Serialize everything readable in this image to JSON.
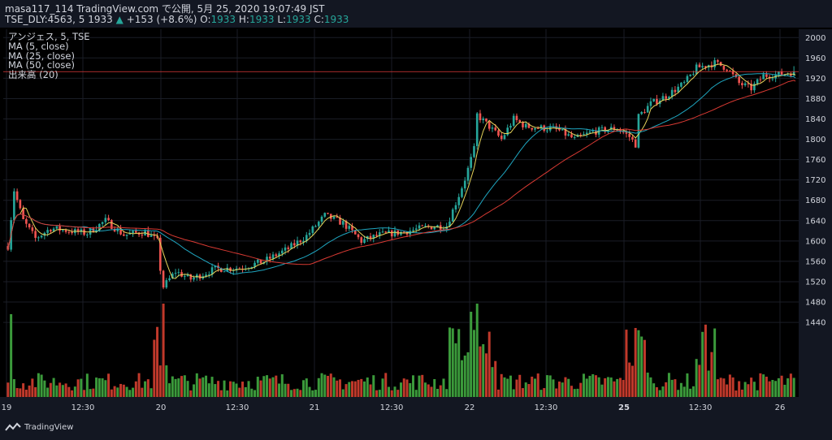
{
  "header": {
    "line1_publisher": "masa117_114 TradingView.com で公開, 5月 25, 2020 19:07:49 JST",
    "line2_symbol": "TSE_DLY:4563, 5",
    "line2_price": "1933",
    "line2_change": "+153 (+8.6%)",
    "line2_o_label": "O:",
    "line2_o": "1933",
    "line2_h_label": "H:",
    "line2_h": "1933",
    "line2_l_label": "L:",
    "line2_l": "1933",
    "line2_c_label": "C:",
    "line2_c": "1933"
  },
  "legend": {
    "title": "アンジェス, 5, TSE",
    "ma5": "MA (5, close)",
    "ma25": "MA (25, close)",
    "ma50": "MA (50, close)",
    "volume": "出来高 (20)"
  },
  "footer": {
    "brand": "TradingView"
  },
  "colors": {
    "up": "#26a69a",
    "down": "#ef5350",
    "ma5": "#e6d35a",
    "ma25": "#1fa6c0",
    "ma50": "#d93a33",
    "last_price_bg": "#e03a3a",
    "vol_up": "#3b9a3b",
    "vol_down": "#c0392b"
  },
  "chart_data": {
    "type": "candlestick",
    "title": "アンジェス, 5, TSE",
    "y_axis": {
      "ticks": [
        1440,
        1480,
        1520,
        1560,
        1600,
        1640,
        1680,
        1720,
        1760,
        1800,
        1840,
        1880,
        1920,
        1960,
        2000
      ],
      "range": [
        1410,
        2025
      ]
    },
    "x_axis": {
      "ticks": [
        {
          "label": "19",
          "bold": false
        },
        {
          "label": "12:30",
          "bold": false
        },
        {
          "label": "20",
          "bold": false
        },
        {
          "label": "12:30",
          "bold": false
        },
        {
          "label": "21",
          "bold": false
        },
        {
          "label": "12:30",
          "bold": false
        },
        {
          "label": "22",
          "bold": false
        },
        {
          "label": "12:30",
          "bold": false
        },
        {
          "label": "25",
          "bold": true
        },
        {
          "label": "12:30",
          "bold": false
        },
        {
          "label": "26",
          "bold": false
        }
      ]
    },
    "last_price": 1933,
    "anchors": [
      [
        0,
        1590
      ],
      [
        2,
        1700
      ],
      [
        5,
        1640
      ],
      [
        9,
        1605
      ],
      [
        14,
        1625
      ],
      [
        20,
        1620
      ],
      [
        26,
        1615
      ],
      [
        32,
        1640
      ],
      [
        38,
        1612
      ],
      [
        45,
        1618
      ],
      [
        49,
        1600
      ],
      [
        50,
        1545
      ],
      [
        51,
        1510
      ],
      [
        55,
        1540
      ],
      [
        60,
        1525
      ],
      [
        68,
        1545
      ],
      [
        76,
        1547
      ],
      [
        84,
        1560
      ],
      [
        92,
        1585
      ],
      [
        98,
        1610
      ],
      [
        104,
        1650
      ],
      [
        110,
        1635
      ],
      [
        116,
        1600
      ],
      [
        122,
        1612
      ],
      [
        130,
        1618
      ],
      [
        138,
        1628
      ],
      [
        144,
        1630
      ],
      [
        148,
        1690
      ],
      [
        150,
        1722
      ],
      [
        153,
        1780
      ],
      [
        154,
        1848
      ],
      [
        158,
        1825
      ],
      [
        162,
        1800
      ],
      [
        166,
        1840
      ],
      [
        170,
        1825
      ],
      [
        180,
        1820
      ],
      [
        186,
        1800
      ],
      [
        192,
        1815
      ],
      [
        200,
        1822
      ],
      [
        204,
        1805
      ],
      [
        206,
        1790
      ],
      [
        207,
        1845
      ],
      [
        211,
        1870
      ],
      [
        216,
        1885
      ],
      [
        222,
        1910
      ],
      [
        226,
        1940
      ],
      [
        232,
        1950
      ],
      [
        236,
        1940
      ],
      [
        240,
        1910
      ],
      [
        244,
        1900
      ],
      [
        248,
        1925
      ],
      [
        254,
        1928
      ],
      [
        258,
        1933
      ]
    ],
    "n_bars": 259
  }
}
